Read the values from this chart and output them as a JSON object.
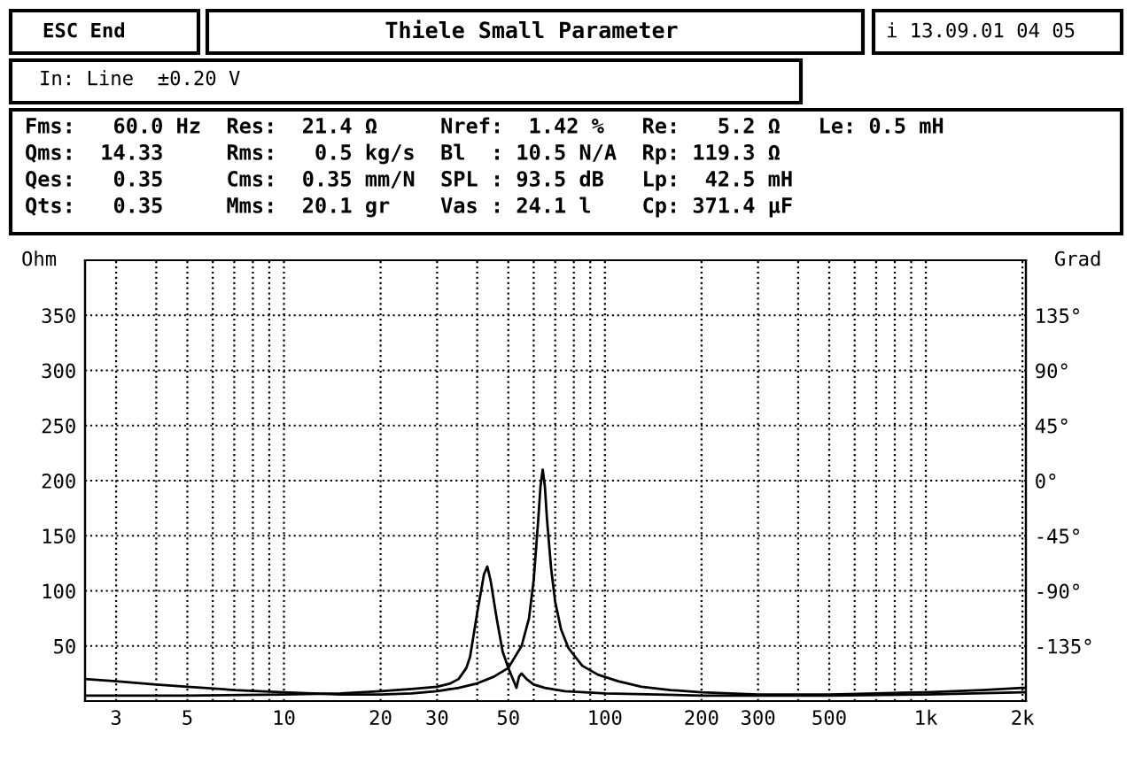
{
  "chart_data": {
    "type": "line",
    "ylabel": "Ohm",
    "y2label": "Grad",
    "annotations": [
      "ESC End",
      "Thiele Small Parameter",
      "i 13.09.01 04 05",
      "In: Line  ±0.20 V",
      "Fms:   60.0 Hz  Res:  21.4 Ω     Nref:  1.42 %   Re:   5.2 Ω   Le: 0.5 mH",
      "Qms:  14.33     Rms:   0.5 kg/s  Bl  : 10.5 N/A  Rp: 119.3 Ω",
      "Qes:   0.35     Cms:  0.35 mm/N  SPL : 93.5 dB   Lp:  42.5 mH",
      "Qts:   0.35     Mms:  20.1 gr    Vas : 24.1 l    Cp: 371.4 µF"
    ],
    "series": [
      {
        "color": "#000000",
        "x": [
          2.4,
          3,
          4,
          5,
          7,
          10,
          15,
          20,
          25,
          30,
          35,
          40,
          45,
          50,
          55,
          58,
          60,
          62,
          63,
          64,
          65,
          66,
          68,
          70,
          73,
          77,
          85,
          95,
          110,
          130,
          160,
          200,
          300,
          500,
          700,
          1000,
          1500,
          2000,
          2050
        ],
        "values": [
          20,
          18,
          15,
          13,
          10,
          8,
          6,
          6,
          7,
          9,
          12,
          16,
          22,
          30,
          50,
          75,
          110,
          165,
          195,
          210,
          195,
          165,
          120,
          90,
          65,
          48,
          32,
          24,
          18,
          13,
          10,
          8,
          6,
          6,
          7,
          8,
          10,
          12,
          12
        ]
      },
      {
        "color": "#000000",
        "x": [
          2.4,
          3,
          5,
          10,
          15,
          20,
          25,
          30,
          33,
          35,
          36,
          37,
          38,
          40,
          42,
          43,
          44,
          46,
          48,
          50,
          52,
          53,
          54,
          55,
          57,
          60,
          65,
          75,
          100,
          200,
          500,
          1000,
          2000,
          2050
        ],
        "values": [
          5,
          5,
          5,
          6,
          7,
          9,
          11,
          13,
          16,
          20,
          25,
          30,
          40,
          80,
          115,
          122,
          110,
          75,
          45,
          30,
          18,
          12,
          22,
          25,
          20,
          15,
          12,
          9,
          7,
          5,
          5,
          6,
          8,
          8
        ]
      }
    ],
    "log": "x",
    "xlim": [
      2.4,
      2050
    ],
    "xticks": [
      3,
      {
        "value": 4,
        "label": null
      },
      5,
      {
        "value": 6,
        "label": null
      },
      {
        "value": 7,
        "label": null
      },
      {
        "value": 8,
        "label": null
      },
      {
        "value": 9,
        "label": null
      },
      10,
      20,
      30,
      {
        "value": 40,
        "label": null
      },
      50,
      {
        "value": 60,
        "label": null
      },
      {
        "value": 70,
        "label": null
      },
      {
        "value": 80,
        "label": null
      },
      {
        "value": 90,
        "label": null
      },
      100,
      200,
      300,
      {
        "value": 400,
        "label": null
      },
      500,
      {
        "value": 600,
        "label": null
      },
      {
        "value": 700,
        "label": null
      },
      {
        "value": 800,
        "label": null
      },
      {
        "value": 900,
        "label": null
      },
      {
        "value": 1000,
        "label": "1k"
      },
      {
        "value": 2000,
        "label": "2k"
      }
    ],
    "ylim": [
      0,
      400
    ],
    "yticks": [
      50,
      100,
      150,
      200,
      250,
      300,
      350
    ],
    "y2lim": [
      -180,
      180
    ],
    "y2ticks": [
      {
        "value": -135,
        "label": "-135°"
      },
      {
        "value": -90,
        "label": "-90°"
      },
      {
        "value": -45,
        "label": "-45°"
      },
      {
        "value": 0,
        "label": "0°"
      },
      {
        "value": 45,
        "label": "45°"
      },
      {
        "value": 90,
        "label": "90°"
      },
      {
        "value": 135,
        "label": "135°"
      }
    ],
    "grid": true,
    "line_style": "solid",
    "marker": "none"
  }
}
